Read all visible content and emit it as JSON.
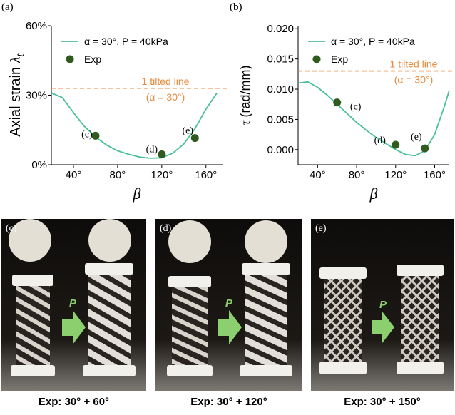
{
  "chart_data": [
    {
      "panel": "(a)",
      "type": "line",
      "ylabel": "Axial strain",
      "ylabel_symbol": "λ",
      "ylabel_subscript": "t",
      "xlabel": "β",
      "xlim": [
        20,
        175
      ],
      "ylim": [
        0,
        60
      ],
      "xticks": [
        40,
        80,
        120,
        160
      ],
      "xtick_labels": [
        "40°",
        "80°",
        "120°",
        "160°"
      ],
      "yticks": [
        0,
        30,
        60
      ],
      "ytick_labels": [
        "0%",
        "30%",
        "60%"
      ],
      "legend": {
        "line_label": "α = 30°, P = 40kPa",
        "scatter_label": "Exp"
      },
      "series": [
        {
          "name": "α = 30°, P = 40kPa",
          "kind": "line",
          "color": "#4bbf9c",
          "x": [
            20,
            30,
            40,
            50,
            60,
            70,
            80,
            90,
            100,
            110,
            120,
            130,
            140,
            150,
            160,
            170
          ],
          "y": [
            31,
            29,
            22.5,
            16.5,
            12,
            8.5,
            6,
            4.5,
            3.3,
            2.8,
            3.0,
            5.0,
            9.0,
            15.5,
            24,
            31
          ]
        },
        {
          "name": "Exp",
          "kind": "scatter",
          "color": "#2f5c1e",
          "x": [
            60,
            120,
            150
          ],
          "y": [
            12.5,
            4.5,
            11.5
          ],
          "labels": [
            "(c)",
            "(d)",
            "(e)"
          ]
        }
      ],
      "reference_line": {
        "y": 33,
        "label": "1 tilted line",
        "sublabel": "(α = 30°)",
        "color": "#e98a3c"
      }
    },
    {
      "panel": "(b)",
      "type": "line",
      "ylabel": "(rad/mm)",
      "ylabel_symbol": "τ",
      "xlabel": "β",
      "xlim": [
        20,
        175
      ],
      "ylim": [
        -0.0025,
        0.0205
      ],
      "xticks": [
        40,
        80,
        120,
        160
      ],
      "xtick_labels": [
        "40°",
        "80°",
        "120°",
        "160°"
      ],
      "yticks": [
        0,
        0.005,
        0.01,
        0.015,
        0.02
      ],
      "ytick_labels": [
        "0.000",
        "0.005",
        "0.010",
        "0.015",
        "0.020"
      ],
      "legend": {
        "line_label": "α = 30°, P = 40kPa",
        "scatter_label": "Exp"
      },
      "series": [
        {
          "name": "α = 30°, P = 40kPa",
          "kind": "line",
          "color": "#4bbf9c",
          "x": [
            20,
            30,
            40,
            50,
            60,
            70,
            80,
            90,
            100,
            110,
            120,
            130,
            140,
            150,
            160,
            170,
            175
          ],
          "y": [
            0.011,
            0.0112,
            0.0103,
            0.009,
            0.0075,
            0.006,
            0.0045,
            0.0032,
            0.002,
            0.001,
            0.0,
            -0.0008,
            -0.001,
            -0.0002,
            0.0025,
            0.0072,
            0.0098
          ]
        },
        {
          "name": "Exp",
          "kind": "scatter",
          "color": "#2f5c1e",
          "x": [
            60,
            120,
            150
          ],
          "y": [
            0.0078,
            0.0008,
            0.0002
          ],
          "labels": [
            "(c)",
            "(d)",
            "(e)"
          ]
        }
      ],
      "reference_line": {
        "y": 0.013,
        "label": "1 tilted line",
        "sublabel": "(α = 30°)",
        "color": "#e98a3c"
      }
    }
  ],
  "photos": [
    {
      "label": "(c)",
      "caption": "Exp: 30° + 60°",
      "arrow_label": "P"
    },
    {
      "label": "(d)",
      "caption": "Exp: 30° + 120°",
      "arrow_label": "P"
    },
    {
      "label": "(e)",
      "caption": "Exp: 30° + 150°",
      "arrow_label": "P"
    }
  ],
  "colors": {
    "model_line": "#4bbf9c",
    "exp_marker": "#2f5c1e",
    "reference": "#e98a3c",
    "arrow": "#8ccf6e"
  }
}
